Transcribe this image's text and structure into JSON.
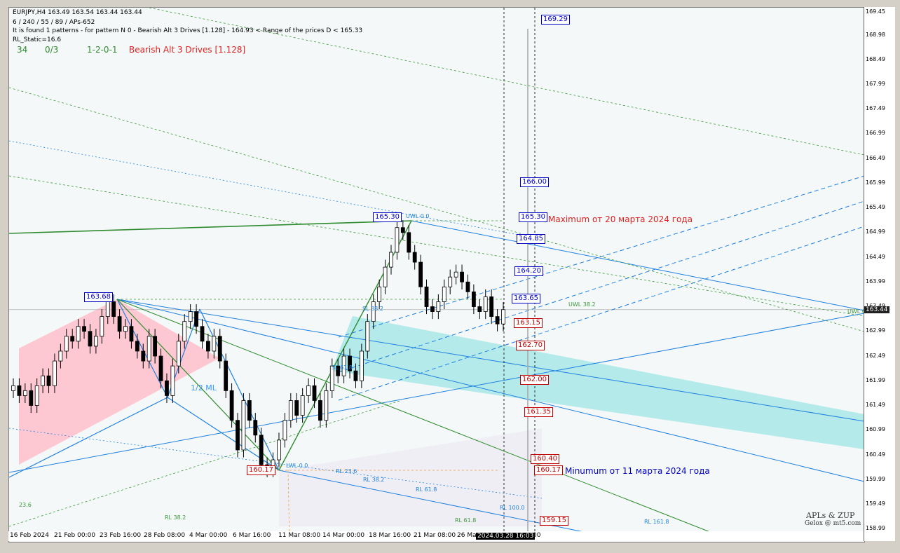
{
  "header": {
    "symbol_line": "EURJPY,H4  163.49 163.54 163.44 163.44",
    "params_line": "6 / 240 / 55 / 89 / APs-652",
    "found_line": "It is found 1 patterns  -  for pattern N 0 - Bearish Alt 3 Drives [1.128] - 164.93 < Range of the prices D < 165.33",
    "rl_static": "RL_Static=16.6",
    "stat_a": "34",
    "stat_b": "0/3",
    "stat_c": "1-2-0-1",
    "pattern_name": "Bearish Alt 3 Drives [1.128]"
  },
  "annotations": {
    "maximum_note": "Maximum от 20 марта 2024 года",
    "minimum_note": "Minumum от 11 марта 2024 года",
    "half_ml": "1/2 ML",
    "uwl_0": "UWL 0.0",
    "uwl_38": "UWL 38.2",
    "sl_38": "SL 38.2",
    "sl_61": "SL 61.8",
    "rl_236": "RL 23.6",
    "rl_382": "RL 38.2",
    "rl_618": "RL 61.8",
    "rl_1000": "RL 100.0",
    "rl_1618": "RL 161.8",
    "lwl_0": "LWL 0.0",
    "rl_236_left": "23.6",
    "rl_382_lower": "RL 38.2",
    "rl_618_lower": "RL 61.8",
    "uwl_right": "UWL 6",
    "brand": "APLs & ZUP",
    "brand_sub": "Gelox @ mt5.com"
  },
  "levels_right": [
    {
      "label": "169.29",
      "price": 169.29,
      "style": "blue"
    },
    {
      "label": "166.00",
      "price": 166.0,
      "style": "blue"
    },
    {
      "label": "165.30",
      "price": 165.3,
      "style": "blue"
    },
    {
      "label": "164.85",
      "price": 164.85,
      "style": "blue"
    },
    {
      "label": "164.20",
      "price": 164.2,
      "style": "blue"
    },
    {
      "label": "163.65",
      "price": 163.65,
      "style": "blue"
    },
    {
      "label": "163.15",
      "price": 163.15,
      "style": "red"
    },
    {
      "label": "162.70",
      "price": 162.7,
      "style": "red"
    },
    {
      "label": "162.00",
      "price": 162.0,
      "style": "red"
    },
    {
      "label": "161.35",
      "price": 161.35,
      "style": "red"
    },
    {
      "label": "160.40",
      "price": 160.4,
      "style": "red"
    },
    {
      "label": "160.17",
      "price": 160.17,
      "style": "red"
    },
    {
      "label": "159.15",
      "price": 159.15,
      "style": "red"
    }
  ],
  "pivot_labels": [
    {
      "label": "163.68",
      "price": 163.68,
      "style": "blue"
    },
    {
      "label": "165.30",
      "price": 165.3,
      "style": "blue"
    },
    {
      "label": "160.17",
      "price": 160.17,
      "style": "red"
    }
  ],
  "current_price": "163.44",
  "current_time": "2024.03.28 16:03",
  "chart_data": {
    "type": "candlestick",
    "title": "EURJPY,H4",
    "ylim": [
      158.94,
      169.55
    ],
    "y_ticks": [
      "169.45",
      "168.98",
      "168.49",
      "167.99",
      "167.49",
      "166.99",
      "166.49",
      "165.99",
      "165.49",
      "164.99",
      "164.49",
      "163.99",
      "163.49",
      "162.99",
      "162.49",
      "161.99",
      "161.49",
      "160.99",
      "160.49",
      "159.99",
      "159.49",
      "158.99"
    ],
    "x_ticks": [
      "16 Feb 2024",
      "21 Feb 00:00",
      "23 Feb 16:00",
      "28 Feb 08:00",
      "4 Mar 00:00",
      "6 Mar 16:00",
      "11 Mar 08:00",
      "14 Mar 00:00",
      "18 Mar 16:00",
      "21 Mar 08:00",
      "26 Ma"
    ],
    "x_tick_suffix": ":00",
    "closes": [
      161.9,
      161.7,
      161.8,
      161.5,
      161.9,
      162.1,
      161.9,
      162.4,
      162.6,
      162.9,
      162.8,
      163.1,
      163.0,
      162.7,
      162.9,
      163.3,
      163.6,
      163.3,
      163.0,
      163.1,
      162.8,
      162.6,
      162.4,
      162.9,
      162.5,
      162.0,
      161.7,
      162.3,
      162.8,
      163.2,
      163.4,
      163.1,
      162.8,
      162.6,
      162.9,
      162.4,
      161.8,
      161.2,
      160.6,
      161.6,
      161.2,
      160.9,
      160.3,
      160.2,
      160.4,
      160.8,
      161.2,
      161.6,
      161.3,
      161.7,
      161.9,
      161.6,
      161.2,
      161.8,
      162.3,
      162.1,
      162.5,
      162.2,
      162.0,
      162.6,
      163.2,
      163.6,
      163.9,
      164.3,
      164.6,
      165.1,
      165.0,
      164.6,
      164.4,
      163.9,
      163.5,
      163.4,
      163.6,
      163.9,
      164.1,
      164.2,
      164.0,
      163.8,
      163.5,
      163.4,
      163.7,
      163.3,
      163.15,
      163.44
    ]
  }
}
